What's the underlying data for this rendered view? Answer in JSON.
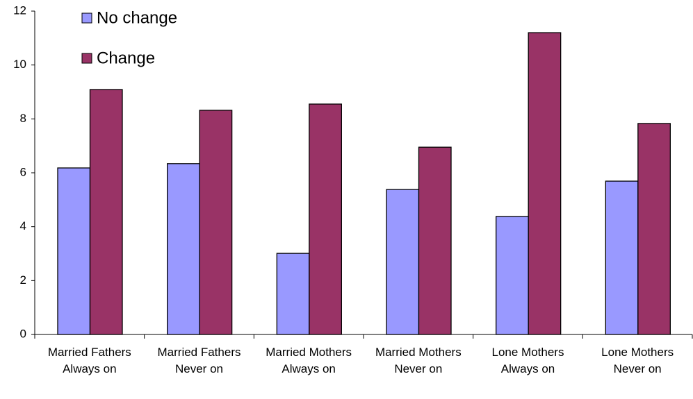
{
  "chart_data": {
    "type": "bar",
    "categories": [
      "Married Fathers Always on",
      "Married Fathers Never on",
      "Married Mothers Always on",
      "Married Mothers Never on",
      "Lone Mothers Always on",
      "Lone Mothers Never on"
    ],
    "series": [
      {
        "name": "No change",
        "color": "#9999ff",
        "values": [
          6.18,
          6.34,
          3.01,
          5.38,
          4.38,
          5.69
        ]
      },
      {
        "name": "Change",
        "color": "#993366",
        "values": [
          9.09,
          8.32,
          8.55,
          6.95,
          11.2,
          7.83
        ]
      }
    ],
    "ylim": [
      0,
      12
    ],
    "yticks": [
      0,
      2,
      4,
      6,
      8,
      10,
      12
    ],
    "grid": false,
    "legend": "top-left"
  }
}
